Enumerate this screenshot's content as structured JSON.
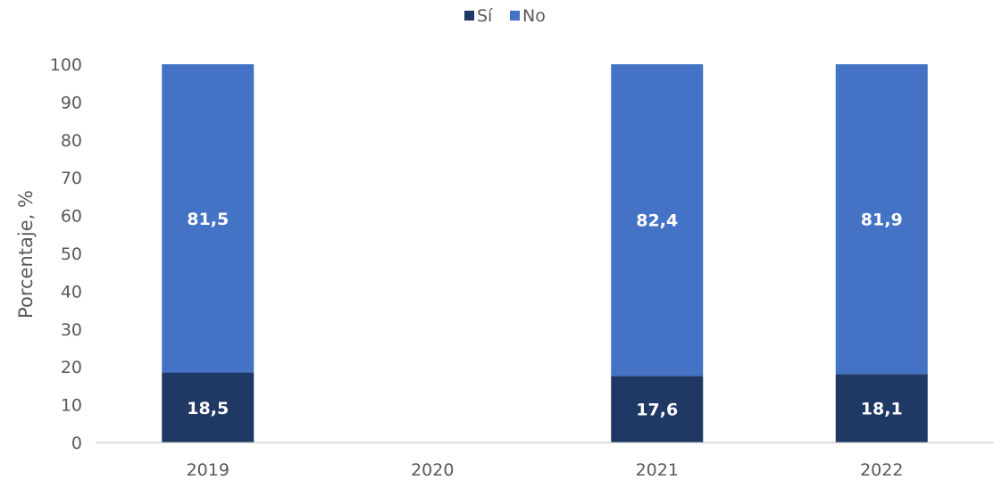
{
  "chart_data": {
    "type": "bar",
    "stacked": true,
    "categories": [
      "2019",
      "2020",
      "2021",
      "2022"
    ],
    "series": [
      {
        "name": "Sí",
        "values": [
          18.5,
          null,
          17.6,
          18.1
        ],
        "labels": [
          "18,5",
          "",
          "17,6",
          "18,1"
        ],
        "color": "#203864"
      },
      {
        "name": "No",
        "values": [
          81.5,
          null,
          82.4,
          81.9
        ],
        "labels": [
          "81,5",
          "",
          "82,4",
          "81,9"
        ],
        "color": "#4472C4"
      }
    ],
    "title": "",
    "xlabel": "",
    "ylabel": "Porcentaje, %",
    "ylim": [
      0,
      100
    ],
    "yticks": [
      0,
      10,
      20,
      30,
      40,
      50,
      60,
      70,
      80,
      90,
      100
    ],
    "grid": false,
    "legend_position": "top-center",
    "axis_color": "#BFBFBF",
    "text_color": "#595959"
  }
}
